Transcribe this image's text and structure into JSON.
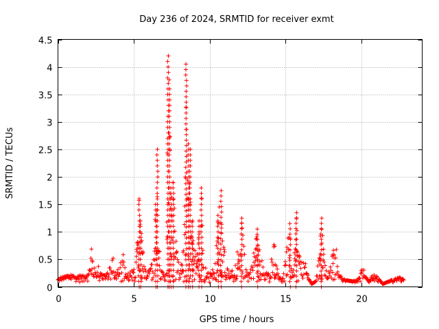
{
  "chart_data": {
    "type": "scatter",
    "title": "Day 236 of 2024, SRMTID for receiver exmt",
    "xlabel": "GPS time / hours",
    "ylabel": "SRMTID / TECUs",
    "xlim": [
      0,
      24
    ],
    "ylim": [
      0,
      4.5
    ],
    "xticks": [
      0,
      5,
      10,
      15,
      20
    ],
    "xtick_labels": [
      "0",
      "5",
      "10",
      "15",
      "20"
    ],
    "yticks": [
      0,
      0.5,
      1,
      1.5,
      2,
      2.5,
      3,
      3.5,
      4,
      4.5
    ],
    "ytick_labels": [
      "0",
      "0.5",
      "1",
      "1.5",
      "2",
      "2.5",
      "3",
      "3.5",
      "4",
      "4.5"
    ],
    "grid": true,
    "marker": "+",
    "color": "#ff0000",
    "series": [
      {
        "name": "SRMTID",
        "envelope": [
          [
            0.0,
            0.16
          ],
          [
            0.3,
            0.18
          ],
          [
            0.6,
            0.2
          ],
          [
            0.9,
            0.22
          ],
          [
            1.2,
            0.18
          ],
          [
            1.5,
            0.22
          ],
          [
            1.8,
            0.2
          ],
          [
            2.0,
            0.28
          ],
          [
            2.15,
            0.55
          ],
          [
            2.2,
            0.7
          ],
          [
            2.3,
            0.45
          ],
          [
            2.5,
            0.3
          ],
          [
            2.7,
            0.4
          ],
          [
            2.9,
            0.3
          ],
          [
            3.1,
            0.25
          ],
          [
            3.3,
            0.3
          ],
          [
            3.5,
            0.45
          ],
          [
            3.65,
            0.58
          ],
          [
            3.8,
            0.38
          ],
          [
            4.0,
            0.35
          ],
          [
            4.2,
            0.55
          ],
          [
            4.3,
            0.72
          ],
          [
            4.45,
            0.22
          ],
          [
            4.6,
            0.28
          ],
          [
            4.9,
            0.3
          ],
          [
            5.1,
            0.35
          ],
          [
            5.25,
            1.0
          ],
          [
            5.35,
            1.6
          ],
          [
            5.45,
            1.2
          ],
          [
            5.6,
            0.7
          ],
          [
            5.8,
            0.5
          ],
          [
            6.1,
            0.5
          ],
          [
            6.3,
            0.8
          ],
          [
            6.45,
            1.5
          ],
          [
            6.55,
            2.5
          ],
          [
            6.65,
            1.0
          ],
          [
            6.8,
            0.3
          ],
          [
            7.0,
            0.25
          ],
          [
            7.15,
            0.4
          ],
          [
            7.25,
            4.2
          ],
          [
            7.35,
            3.6
          ],
          [
            7.45,
            1.8
          ],
          [
            7.6,
            1.9
          ],
          [
            7.75,
            1.0
          ],
          [
            7.9,
            0.6
          ],
          [
            8.1,
            0.5
          ],
          [
            8.3,
            0.9
          ],
          [
            8.45,
            4.05
          ],
          [
            8.6,
            2.6
          ],
          [
            8.7,
            2.5
          ],
          [
            8.85,
            1.2
          ],
          [
            9.0,
            0.7
          ],
          [
            9.2,
            0.6
          ],
          [
            9.3,
            1.2
          ],
          [
            9.45,
            1.8
          ],
          [
            9.6,
            0.5
          ],
          [
            9.8,
            0.3
          ],
          [
            10.0,
            0.25
          ],
          [
            10.3,
            0.4
          ],
          [
            10.55,
            1.3
          ],
          [
            10.75,
            1.75
          ],
          [
            10.9,
            1.0
          ],
          [
            11.1,
            0.4
          ],
          [
            11.4,
            0.3
          ],
          [
            11.7,
            0.4
          ],
          [
            11.9,
            0.8
          ],
          [
            12.1,
            1.25
          ],
          [
            12.3,
            0.6
          ],
          [
            12.5,
            0.2
          ],
          [
            12.8,
            0.4
          ],
          [
            13.0,
            0.8
          ],
          [
            13.15,
            1.05
          ],
          [
            13.35,
            0.6
          ],
          [
            13.6,
            0.3
          ],
          [
            13.9,
            0.25
          ],
          [
            14.1,
            0.6
          ],
          [
            14.2,
            1.0
          ],
          [
            14.4,
            0.4
          ],
          [
            14.6,
            0.15
          ],
          [
            14.9,
            0.3
          ],
          [
            15.1,
            0.8
          ],
          [
            15.3,
            1.15
          ],
          [
            15.5,
            0.3
          ],
          [
            15.7,
            1.35
          ],
          [
            15.85,
            0.8
          ],
          [
            16.1,
            0.4
          ],
          [
            16.3,
            0.6
          ],
          [
            16.5,
            0.2
          ],
          [
            16.7,
            0.05
          ],
          [
            17.0,
            0.1
          ],
          [
            17.2,
            0.6
          ],
          [
            17.35,
            1.25
          ],
          [
            17.55,
            0.5
          ],
          [
            17.75,
            0.2
          ],
          [
            17.95,
            0.35
          ],
          [
            18.1,
            0.7
          ],
          [
            18.25,
            0.92
          ],
          [
            18.45,
            0.4
          ],
          [
            18.7,
            0.15
          ],
          [
            19.0,
            0.12
          ],
          [
            19.4,
            0.1
          ],
          [
            19.7,
            0.12
          ],
          [
            19.9,
            0.2
          ],
          [
            20.05,
            0.45
          ],
          [
            20.25,
            0.2
          ],
          [
            20.5,
            0.08
          ],
          [
            20.8,
            0.3
          ],
          [
            21.0,
            0.2
          ],
          [
            21.4,
            0.05
          ],
          [
            21.8,
            0.1
          ],
          [
            22.2,
            0.15
          ],
          [
            22.5,
            0.17
          ],
          [
            22.8,
            0.13
          ]
        ]
      }
    ]
  }
}
